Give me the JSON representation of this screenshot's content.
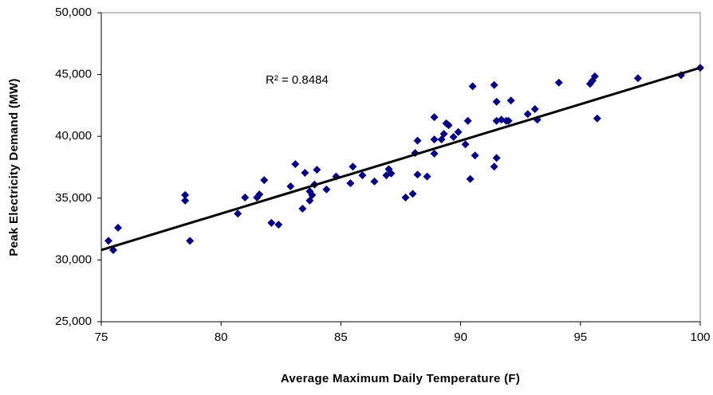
{
  "chart_data": {
    "type": "scatter",
    "x_label": "Average Maximum Daily Temperature (F)",
    "y_label": "Peak Electricity Demand (MW)",
    "annotation": "R² = 0.8484",
    "color": "#000080",
    "trend_color": "#000000",
    "xlim": [
      75,
      100
    ],
    "xticks": [
      75,
      80,
      85,
      90,
      95,
      100
    ],
    "ylim": [
      25000,
      50000
    ],
    "yticks": [
      {
        "value": 25000,
        "label": "25,000"
      },
      {
        "value": 30000,
        "label": "30,000"
      },
      {
        "value": 35000,
        "label": "35,000"
      },
      {
        "value": 40000,
        "label": "40,000"
      },
      {
        "value": 45000,
        "label": "45,000"
      },
      {
        "value": 50000,
        "label": "50,000"
      }
    ],
    "x": [
      75.3,
      75.5,
      75.7,
      78.7,
      78.5,
      78.5,
      80.7,
      81.0,
      81.5,
      81.6,
      81.8,
      82.1,
      82.4,
      82.9,
      83.1,
      83.4,
      83.5,
      83.7,
      83.7,
      83.8,
      83.9,
      84.0,
      84.4,
      84.8,
      85.4,
      85.5,
      85.9,
      86.4,
      86.9,
      87.0,
      87.1,
      87.7,
      88.0,
      88.1,
      88.2,
      88.2,
      88.6,
      88.9,
      88.9,
      88.9,
      89.2,
      89.3,
      89.4,
      89.5,
      89.7,
      89.9,
      90.2,
      90.3,
      90.4,
      90.5,
      90.6,
      91.4,
      91.5,
      91.5,
      91.5,
      91.4,
      91.7,
      91.9,
      92.0,
      92.1,
      92.8,
      93.1,
      93.2,
      94.1,
      95.4,
      95.5,
      95.6,
      95.7,
      97.4,
      99.2,
      100.0
    ],
    "y": [
      31550,
      30800,
      32600,
      31550,
      35250,
      34800,
      33750,
      35050,
      35050,
      35300,
      36450,
      33000,
      32850,
      35950,
      37750,
      34150,
      37050,
      35550,
      34800,
      35250,
      36100,
      37300,
      35700,
      36750,
      36200,
      37550,
      36850,
      36350,
      36850,
      37350,
      37000,
      35050,
      35350,
      38650,
      39650,
      36900,
      36750,
      39750,
      38600,
      41550,
      39750,
      40200,
      41050,
      40900,
      39950,
      40350,
      39350,
      41250,
      36550,
      44050,
      38450,
      44150,
      42800,
      41250,
      38250,
      37550,
      41350,
      41250,
      41250,
      42900,
      41800,
      42200,
      41350,
      44350,
      44250,
      44500,
      44850,
      41450,
      44700,
      44950,
      45550
    ],
    "trend_x": [
      75,
      100
    ],
    "trend_y": [
      30800,
      45550
    ]
  }
}
